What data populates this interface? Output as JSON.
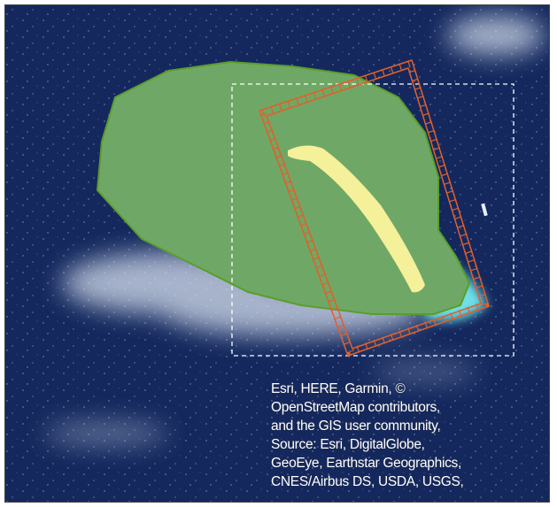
{
  "attribution": {
    "lines": [
      "Esri, HERE, Garmin, ©",
      "OpenStreetMap contributors,",
      "and the GIS user community,",
      "Source: Esri, DigitalGlobe,",
      "GeoEye, Earthstar Geographics,",
      "CNES/Airbus DS, USDA, USGS,"
    ]
  }
}
